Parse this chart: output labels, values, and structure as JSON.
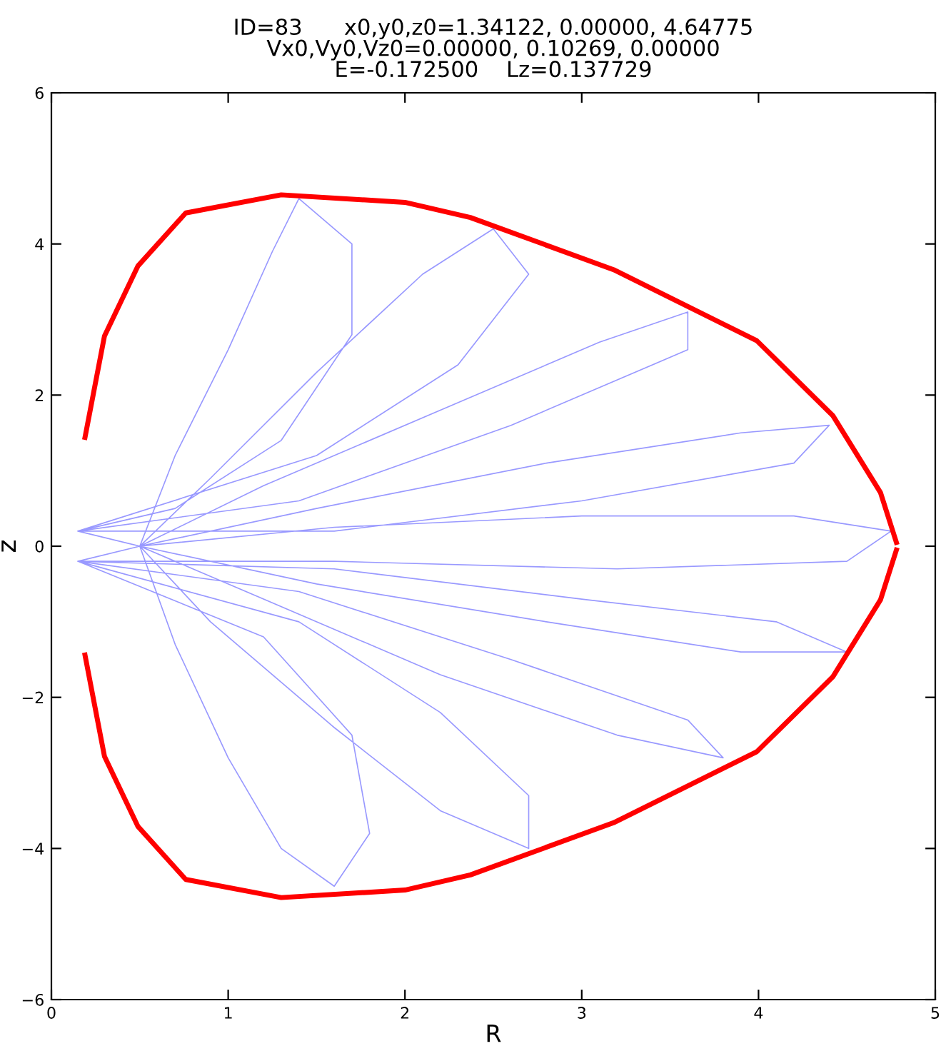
{
  "chart_data": {
    "type": "line",
    "title": "ID=83      x0,y0,z0=1.34122, 0.00000, 4.64775\nVx0,Vy0,Vz0=0.00000, 0.10269, 0.00000\nE=-0.172500    Lz=0.137729",
    "xlabel": "R",
    "ylabel": "z",
    "xlim": [
      0,
      5
    ],
    "xticks": [
      0,
      1,
      2,
      3,
      4,
      5
    ],
    "ylim": [
      -6,
      6
    ],
    "yticks": [
      {
        "value": -6,
        "label": "−6"
      },
      {
        "value": -4,
        "label": "−4"
      },
      {
        "value": -2,
        "label": "−2"
      },
      0,
      2,
      4,
      6
    ],
    "grid": false,
    "legend": false,
    "series": [
      {
        "color": "#9999ff",
        "x": [
          0.15,
          0.5,
          0.7,
          1.0,
          1.25,
          1.4,
          1.7,
          1.7,
          1.3,
          0.7,
          0.15,
          0.5,
          0.9,
          1.5,
          2.1,
          2.5,
          2.7,
          2.3,
          1.5,
          0.15,
          0.5,
          1.2,
          2.2,
          3.1,
          3.6,
          3.6,
          2.6,
          1.4,
          0.15,
          0.5,
          1.5,
          2.8,
          3.9,
          4.4,
          4.2,
          3.0,
          1.6,
          0.15,
          0.5,
          1.6,
          3.0,
          4.2,
          4.75,
          4.5,
          3.2,
          1.6,
          0.15,
          0.5,
          1.5,
          2.8,
          3.9,
          4.5,
          4.1,
          3.0,
          1.6,
          0.15,
          0.5,
          1.2,
          2.2,
          3.2,
          3.8,
          3.6,
          2.6,
          1.4,
          0.15,
          0.5,
          0.9,
          1.6,
          2.2,
          2.7,
          2.7,
          2.2,
          1.4,
          0.15,
          0.5,
          0.7,
          1.0,
          1.3,
          1.6,
          1.8,
          1.7,
          1.2,
          0.15
        ],
        "values": [
          0.2,
          0,
          1.2,
          2.6,
          3.9,
          4.6,
          4.0,
          2.8,
          1.4,
          0.5,
          0.2,
          0,
          0.9,
          2.3,
          3.6,
          4.2,
          3.6,
          2.4,
          1.2,
          0.2,
          0,
          0.8,
          1.8,
          2.7,
          3.1,
          2.6,
          1.6,
          0.6,
          0.2,
          0,
          0.5,
          1.1,
          1.5,
          1.6,
          1.1,
          0.6,
          0.2,
          0.2,
          0,
          0.25,
          0.4,
          0.4,
          0.2,
          -0.2,
          -0.3,
          -0.2,
          -0.2,
          0,
          -0.5,
          -1.0,
          -1.4,
          -1.4,
          -1.0,
          -0.7,
          -0.3,
          -0.2,
          0,
          -0.7,
          -1.7,
          -2.5,
          -2.8,
          -2.3,
          -1.5,
          -0.6,
          -0.2,
          0,
          -1.0,
          -2.4,
          -3.5,
          -4.0,
          -3.3,
          -2.2,
          -1.0,
          -0.2,
          0,
          -1.3,
          -2.8,
          -4.0,
          -4.5,
          -3.8,
          -2.5,
          -1.2,
          -0.2
        ]
      },
      {
        "color": "#ff0000",
        "x": [
          0.19,
          0.3,
          0.49,
          0.76,
          1.3,
          2.0,
          2.37,
          3.18,
          3.99,
          4.42,
          4.69,
          4.78
        ],
        "values": [
          1.44,
          2.78,
          3.71,
          4.41,
          4.65,
          4.55,
          4.35,
          3.66,
          2.72,
          1.73,
          0.71,
          0.05
        ]
      },
      {
        "color": "#ff0000",
        "x": [
          0.19,
          0.3,
          0.49,
          0.76,
          1.3,
          2.0,
          2.37,
          3.18,
          3.99,
          4.42,
          4.69,
          4.78
        ],
        "values": [
          -1.44,
          -2.78,
          -3.71,
          -4.41,
          -4.65,
          -4.55,
          -4.35,
          -3.66,
          -2.72,
          -1.73,
          -0.71,
          -0.05
        ]
      }
    ]
  }
}
